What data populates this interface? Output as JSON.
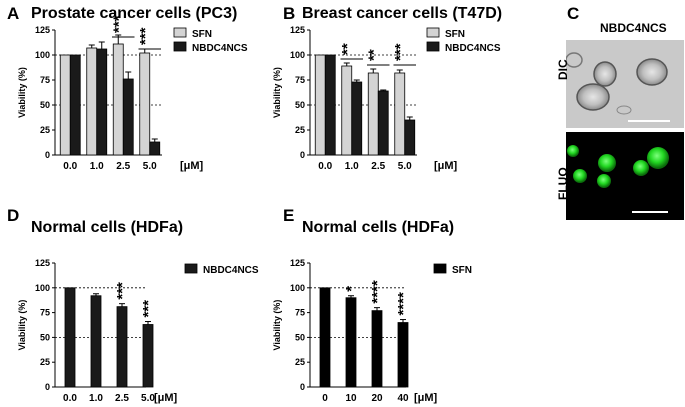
{
  "panels": {
    "A": {
      "letter": "A",
      "title": "Prostate cancer cells (PC3)"
    },
    "B": {
      "letter": "B",
      "title": "Breast cancer cells (T47D)"
    },
    "C": {
      "letter": "C",
      "title": "NBDC4NCS",
      "row_labels": [
        "DIC",
        "FLUO"
      ]
    },
    "D": {
      "letter": "D",
      "title": "Normal cells (HDFa)"
    },
    "E": {
      "letter": "E",
      "title": "Normal cells (HDFa)"
    }
  },
  "colors": {
    "sfn": "#d4d4d4",
    "nbdc4ncs": "#1a1a1a",
    "sfn_only": "#000000",
    "fluo": "#22d822"
  },
  "chart_data": [
    {
      "id": "A",
      "type": "bar",
      "title": "Prostate cancer cells (PC3)",
      "ylabel": "Viability (%)",
      "unit": "[μM]",
      "categories": [
        "0.0",
        "1.0",
        "2.5",
        "5.0"
      ],
      "ylim": [
        0,
        125
      ],
      "yticks": [
        0,
        25,
        50,
        75,
        100,
        125
      ],
      "reference_lines": [
        100,
        50
      ],
      "series": [
        {
          "name": "SFN",
          "values": [
            100,
            107,
            111,
            102
          ],
          "errors": [
            0,
            3,
            9,
            4
          ]
        },
        {
          "name": "NBDC4NCS",
          "values": [
            100,
            106,
            76,
            13
          ],
          "errors": [
            0,
            7,
            7,
            3
          ]
        }
      ],
      "legend": "top-right",
      "significance": [
        {
          "category": 2,
          "label": "***",
          "y": 118
        },
        {
          "category": 3,
          "label": "***",
          "y": 106
        }
      ]
    },
    {
      "id": "B",
      "type": "bar",
      "title": "Breast cancer cells (T47D)",
      "ylabel": "Viability (%)",
      "unit": "[μM]",
      "categories": [
        "0.0",
        "1.0",
        "2.5",
        "5.0"
      ],
      "ylim": [
        0,
        125
      ],
      "yticks": [
        0,
        25,
        50,
        75,
        100,
        125
      ],
      "reference_lines": [
        100,
        50
      ],
      "series": [
        {
          "name": "SFN",
          "values": [
            100,
            89,
            82,
            82
          ],
          "errors": [
            0,
            3,
            4,
            3
          ]
        },
        {
          "name": "NBDC4NCS",
          "values": [
            100,
            73,
            64,
            35
          ],
          "errors": [
            0,
            2,
            1,
            3
          ]
        }
      ],
      "legend": "top-right",
      "significance": [
        {
          "category": 1,
          "label": "**",
          "y": 96
        },
        {
          "category": 2,
          "label": "**",
          "y": 90
        },
        {
          "category": 3,
          "label": "***",
          "y": 90
        }
      ]
    },
    {
      "id": "D",
      "type": "bar",
      "title": "Normal cells (HDFa)",
      "ylabel": "Viability (%)",
      "unit": "[μM]",
      "categories": [
        "0.0",
        "1.0",
        "2.5",
        "5.0"
      ],
      "ylim": [
        0,
        125
      ],
      "yticks": [
        0,
        25,
        50,
        75,
        100,
        125
      ],
      "reference_lines": [
        100,
        50
      ],
      "series": [
        {
          "name": "NBDC4NCS",
          "values": [
            100,
            92,
            81,
            63
          ],
          "errors": [
            0,
            2,
            3,
            3
          ]
        }
      ],
      "legend": "top-right",
      "significance": [
        {
          "category": 2,
          "label": "***"
        },
        {
          "category": 3,
          "label": "***"
        }
      ]
    },
    {
      "id": "E",
      "type": "bar",
      "title": "Normal cells (HDFa)",
      "ylabel": "Viability (%)",
      "unit": "[μM]",
      "categories": [
        "0",
        "10",
        "20",
        "40"
      ],
      "ylim": [
        0,
        125
      ],
      "yticks": [
        0,
        25,
        50,
        75,
        100,
        125
      ],
      "reference_lines": [
        100,
        50
      ],
      "series": [
        {
          "name": "SFN",
          "values": [
            100,
            90,
            77,
            65
          ],
          "errors": [
            0,
            2,
            3,
            3
          ]
        }
      ],
      "legend": "top-right",
      "significance": [
        {
          "category": 1,
          "label": "*"
        },
        {
          "category": 2,
          "label": "****"
        },
        {
          "category": 3,
          "label": "****"
        }
      ]
    }
  ]
}
